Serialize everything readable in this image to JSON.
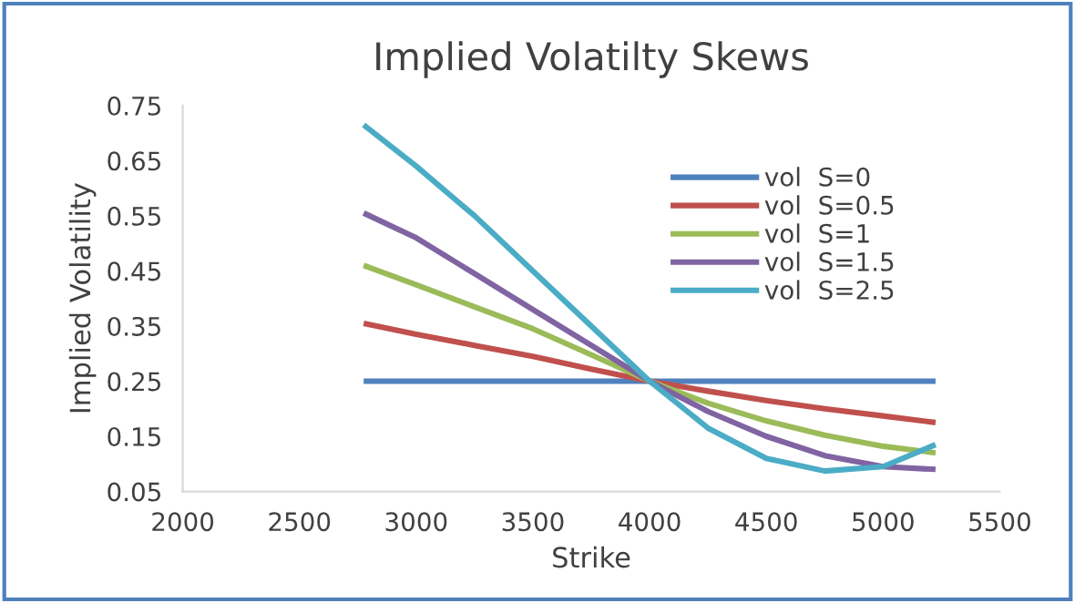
{
  "chart_data": {
    "type": "line",
    "title": "Implied Volatilty Skews",
    "xlabel": "Strike",
    "ylabel": "Implied Volatility",
    "xlim": [
      2000,
      5500
    ],
    "xticks": [
      2000,
      2500,
      3000,
      3500,
      4000,
      4500,
      5000,
      5500
    ],
    "ylim": [
      0.05,
      0.75
    ],
    "yticks": [
      0.05,
      0.15,
      0.25,
      0.35,
      0.45,
      0.55,
      0.65,
      0.75
    ],
    "grid": false,
    "legend": "top right",
    "marker": "none",
    "line_style": "solid",
    "x": [
      2775,
      3000,
      3250,
      3500,
      3750,
      4000,
      4250,
      4500,
      4750,
      5000,
      5225
    ],
    "series": [
      {
        "name": "vol  S=0",
        "color": "#4f81bd",
        "values": [
          0.25,
          0.25,
          0.25,
          0.25,
          0.25,
          0.25,
          0.25,
          0.25,
          0.25,
          0.25,
          0.25
        ]
      },
      {
        "name": "vol  S=0.5",
        "color": "#c0504d",
        "values": [
          0.355,
          0.335,
          0.315,
          0.295,
          0.272,
          0.25,
          0.232,
          0.215,
          0.2,
          0.187,
          0.175
        ]
      },
      {
        "name": "vol  S=1",
        "color": "#9bbb59",
        "values": [
          0.46,
          0.425,
          0.385,
          0.345,
          0.298,
          0.25,
          0.21,
          0.178,
          0.152,
          0.132,
          0.12
        ]
      },
      {
        "name": "vol  S=1.5",
        "color": "#8064a2",
        "values": [
          0.555,
          0.51,
          0.445,
          0.38,
          0.315,
          0.25,
          0.195,
          0.15,
          0.115,
          0.095,
          0.09
        ]
      },
      {
        "name": "vol  S=2.5",
        "color": "#4bacc6",
        "values": [
          0.715,
          0.64,
          0.55,
          0.45,
          0.35,
          0.25,
          0.165,
          0.11,
          0.087,
          0.095,
          0.135
        ]
      }
    ]
  }
}
